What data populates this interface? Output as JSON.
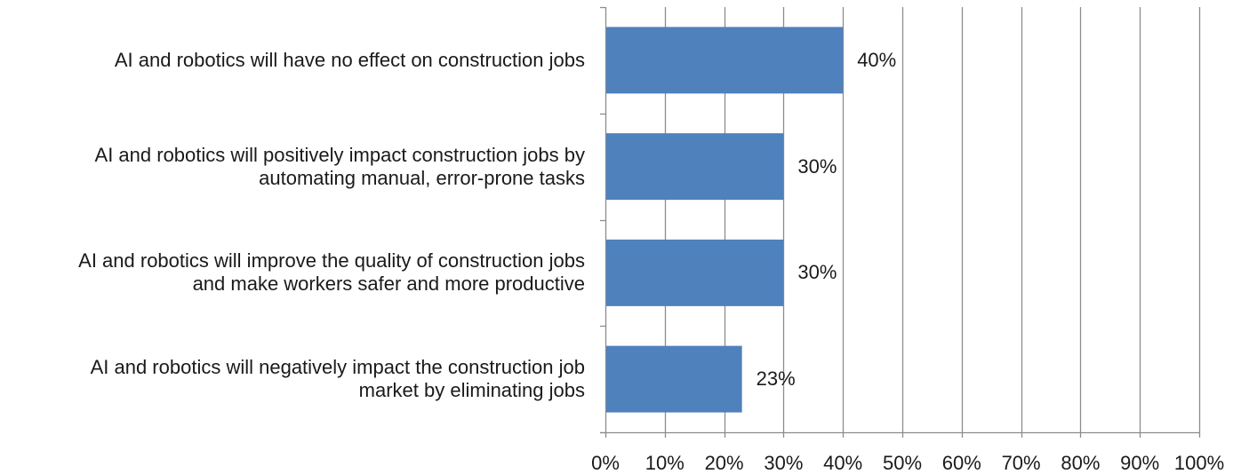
{
  "chart_data": {
    "type": "bar",
    "orientation": "horizontal",
    "categories": [
      [
        "AI and robotics will have no effect on construction jobs"
      ],
      [
        "AI and robotics will positively impact construction jobs by",
        "automating manual, error-prone tasks"
      ],
      [
        "AI and robotics will improve the quality of construction jobs",
        "and make workers safer and more productive"
      ],
      [
        "AI and robotics will negatively impact the construction job",
        "market by eliminating jobs"
      ]
    ],
    "values": [
      40,
      30,
      30,
      23
    ],
    "value_labels": [
      "40%",
      "30%",
      "30%",
      "23%"
    ],
    "xlim": [
      0,
      100
    ],
    "x_ticks": [
      0,
      10,
      20,
      30,
      40,
      50,
      60,
      70,
      80,
      90,
      100
    ],
    "x_tick_labels": [
      "0%",
      "10%",
      "20%",
      "30%",
      "40%",
      "50%",
      "60%",
      "70%",
      "80%",
      "90%",
      "100%"
    ],
    "grid": "vertical",
    "legend": "none",
    "bar_color": "#4f81bd",
    "grid_color": "#8c8c8c"
  }
}
